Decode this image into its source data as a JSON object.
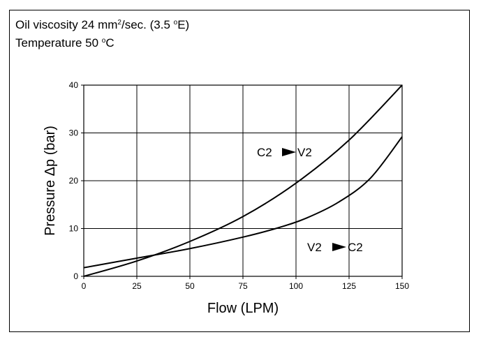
{
  "notes": {
    "line1_prefix": "Oil viscosity 24 mm",
    "line1_sup1": "2",
    "line1_mid": "/sec. (3.5 ",
    "line1_sup2": "o",
    "line1_suffix": "E)",
    "line2_prefix": "Temperature 50 ",
    "line2_sup": "o",
    "line2_suffix": "C"
  },
  "chart_data": {
    "type": "line",
    "xlabel": "Flow (LPM)",
    "ylabel": "Pressure Δp (bar)",
    "xlim": [
      0,
      150
    ],
    "ylim": [
      0,
      40
    ],
    "xticks": [
      0,
      25,
      50,
      75,
      100,
      125,
      150
    ],
    "yticks": [
      0,
      10,
      20,
      30,
      40
    ],
    "grid": true,
    "series": [
      {
        "name": "C2 ► V2",
        "label_from": "C2",
        "label_to": "V2",
        "x": [
          0,
          25,
          50,
          75,
          100,
          125,
          150
        ],
        "y": [
          0,
          3.2,
          7.3,
          12.5,
          19.5,
          28.5,
          40
        ]
      },
      {
        "name": "V2 ► C2",
        "label_from": "V2",
        "label_to": "C2",
        "x": [
          0,
          25,
          50,
          75,
          92,
          105,
          120,
          135,
          150
        ],
        "y": [
          1.8,
          3.8,
          5.8,
          8.2,
          10.2,
          12.2,
          15.5,
          20.5,
          29.2
        ]
      }
    ]
  }
}
